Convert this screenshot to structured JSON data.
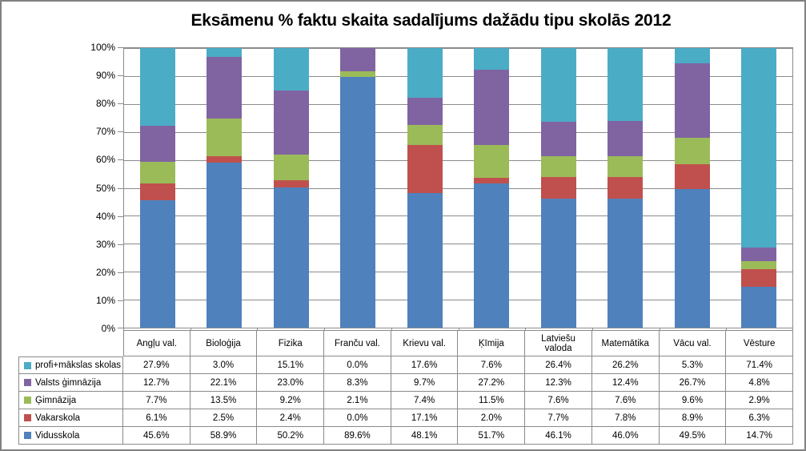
{
  "chart_data": {
    "type": "bar",
    "stacked": true,
    "title": "Eksāmenu % faktu skaita sadalījums dažādu tipu skolās 2012",
    "categories": [
      "Angļu val.",
      "Bioloģija",
      "Fizika",
      "Franču val.",
      "Krievu val.",
      "Ķīmija",
      "Latviešu valoda",
      "Matemātika",
      "Vācu val.",
      "Vēsture"
    ],
    "series": [
      {
        "name": "profi+mākslas skolas",
        "color": "#4BACC6",
        "values": [
          27.9,
          3.0,
          15.1,
          0.0,
          17.6,
          7.6,
          26.4,
          26.2,
          5.3,
          71.4
        ]
      },
      {
        "name": "Valsts ģimnāzija",
        "color": "#8064A2",
        "values": [
          12.7,
          22.1,
          23.0,
          8.3,
          9.7,
          27.2,
          12.3,
          12.4,
          26.7,
          4.8
        ]
      },
      {
        "name": "Ģimnāzija",
        "color": "#9BBB59",
        "values": [
          7.7,
          13.5,
          9.2,
          2.1,
          7.4,
          11.5,
          7.6,
          7.6,
          9.6,
          2.9
        ]
      },
      {
        "name": "Vakarskola",
        "color": "#C0504D",
        "values": [
          6.1,
          2.5,
          2.4,
          0.0,
          17.1,
          2.0,
          7.7,
          7.8,
          8.9,
          6.3
        ]
      },
      {
        "name": "Vidusskola",
        "color": "#4F81BD",
        "values": [
          45.6,
          58.9,
          50.2,
          89.6,
          48.1,
          51.7,
          46.1,
          46.0,
          49.5,
          14.7
        ]
      }
    ],
    "stack_order_bottom_to_top": [
      "Vidusskola",
      "Vakarskola",
      "Ģimnāzija",
      "Valsts ģimnāzija",
      "profi+mākslas skolas"
    ],
    "y_ticks": [
      "100%",
      "90%",
      "80%",
      "70%",
      "60%",
      "50%",
      "40%",
      "30%",
      "20%",
      "10%",
      "0%"
    ],
    "ylim": [
      0,
      100
    ],
    "grid": true,
    "value_suffix": "%",
    "legend_position": "table-left"
  },
  "colors": {
    "axis": "#8b8b8b",
    "grid": "#8b8b8b",
    "table_border": "#8a8a8a",
    "frame_border": "#818181"
  }
}
